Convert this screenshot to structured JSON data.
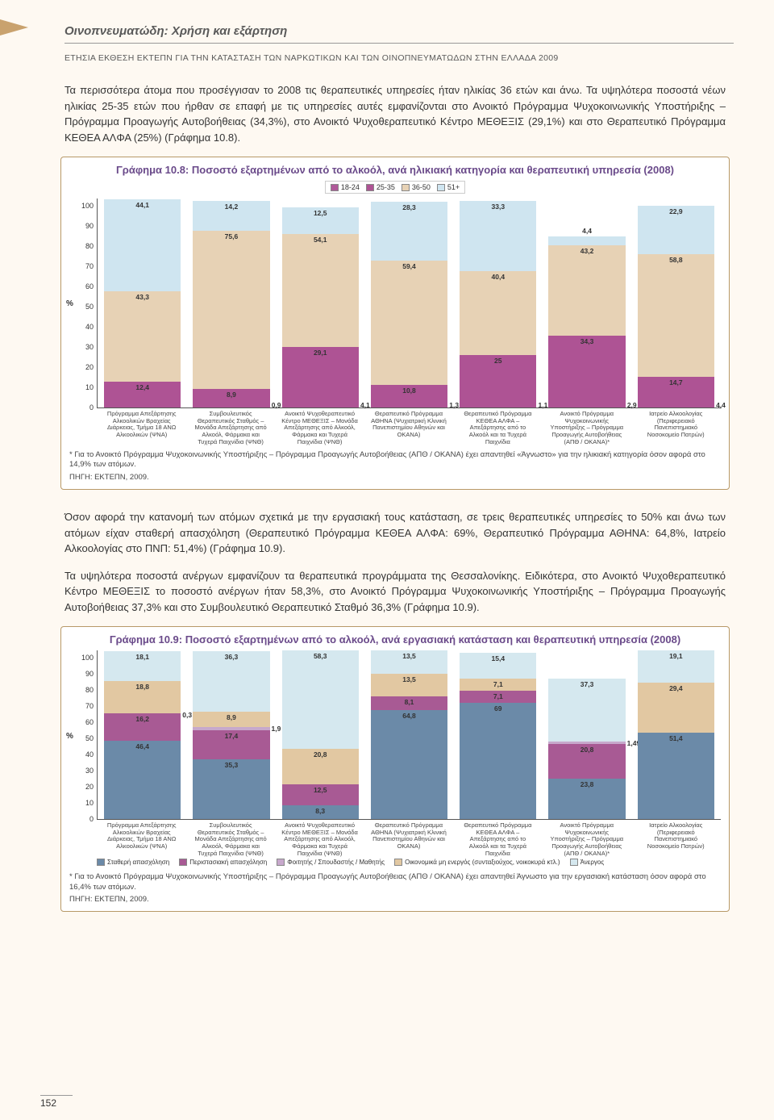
{
  "page": {
    "section_title": "Οινοπνευματώδη: Χρήση και εξάρτηση",
    "report_line": "ΕΤΗΣΙΑ ΕΚΘΕΣΗ ΕΚΤΕΠΝ ΓΙΑ ΤΗΝ ΚΑΤΑΣΤΑΣΗ ΤΩΝ ΝΑΡΚΩΤΙΚΩΝ ΚΑΙ ΤΩΝ ΟΙΝΟΠΝΕΥΜΑΤΩΔΩΝ ΣΤΗΝ ΕΛΛΑΔΑ 2009",
    "page_number": "152"
  },
  "para1": "Τα περισσότερα άτομα που προσέγγισαν το 2008 τις θεραπευτικές υπηρεσίες ήταν ηλικίας 36 ετών και άνω. Τα υψηλότερα ποσοστά νέων ηλικίας 25-35 ετών που ήρθαν σε επαφή με τις υπηρεσίες αυτές εμφανίζονται στο Ανοικτό Πρόγραμμα Ψυχοκοινωνικής Υποστήριξης – Πρόγραμμα Προαγωγής Αυτοβοήθειας (34,3%), στο Ανοικτό Ψυχοθεραπευτικό Κέντρο ΜΕΘΕΞΙΣ (29,1%) και στο Θεραπευτικό Πρόγραμμα ΚΕΘΕΑ ΑΛΦΑ (25%) (Γράφημα 10.8).",
  "para2": "Όσον αφορά την κατανομή των ατόμων σχετικά με την εργασιακή τους κατάσταση, σε τρεις θεραπευτικές υπηρεσίες το 50% και άνω των ατόμων είχαν σταθερή απασχόληση (Θεραπευτικό Πρόγραμμα ΚΕΘΕΑ ΑΛΦΑ: 69%, Θεραπευτικό Πρόγραμμα ΑΘΗΝΑ: 64,8%, Ιατρείο Αλκοολογίας στο ΠΝΠ: 51,4%) (Γράφημα 10.9).",
  "para3": "Τα υψηλότερα ποσοστά ανέργων εμφανίζουν τα θεραπευτικά προγράμματα της Θεσσαλονίκης. Ειδικότερα, στο Ανοικτό Ψυχοθεραπευτικό Κέντρο ΜΕΘΕΞΙΣ το ποσοστό ανέργων ήταν 58,3%, στο Ανοικτό Πρόγραμμα Ψυχοκοινωνικής Υποστήριξης – Πρόγραμμα Προαγωγής Αυτοβοήθειας 37,3% και στο Συμβουλευτικό Θεραπευτικό Σταθμό 36,3% (Γράφημα 10.9).",
  "chart108": {
    "title": "Γράφημα 10.8:  Ποσοστό εξαρτημένων από το αλκοόλ, ανά ηλικιακή κατηγορία και θεραπευτική υπηρεσία (2008)",
    "y_label": "%",
    "y_ticks": [
      "100",
      "90",
      "80",
      "70",
      "60",
      "50",
      "40",
      "30",
      "20",
      "10",
      "0"
    ],
    "legend": [
      {
        "label": "18-24",
        "color": "#b05a9a"
      },
      {
        "label": "25-35",
        "color": "#ae5394"
      },
      {
        "label": "36-50",
        "color": "#e7d2b5"
      },
      {
        "label": "51+",
        "color": "#cfe5f0"
      }
    ],
    "colors": {
      "s1": "#b05a9a",
      "s2": "#ae5394",
      "s3": "#e7d2b5",
      "s4": "#cfe5f0"
    },
    "categories": [
      "Πρόγραμμα Απεξάρτησης Αλκοολικών Βραχείας Διάρκειας, Τμήμα 18 ΑΝΩ Αλκοολικών (ΨΝΑ)",
      "Συμβουλευτικός Θεραπευτικός Σταθμός – Μονάδα Απεξάρτησης από Αλκοόλ, Φάρμακα και Τυχερά Παιχνίδια (ΨΝΘ)",
      "Ανοικτό Ψυχοθεραπευτικό Κέντρο ΜΕΘΕΞΙΣ – Μονάδα Απεξάρτησης από Αλκοόλ, Φάρμακα και Τυχερά Παιχνίδια (ΨΝΘ)",
      "Θεραπευτικό Πρόγραμμα ΑΘΗΝΑ (Ψυχιατρική Κλινική Πανεπιστημίου Αθηνών και ΟΚΑΝΑ)",
      "Θεραπευτικό Πρόγραμμα ΚΕΘΕΑ ΑΛΦΑ – Απεξάρτησης από το Αλκοόλ και τα Τυχερά Παιχνίδια",
      "Ανοικτό Πρόγραμμα Ψυχοκοινωνικής Υποστήριξης – Πρόγραμμα Προαγωγής Αυτοβοήθειας (ΑΠΘ / ΟΚΑΝΑ)*",
      "Ιατρείο Αλκοολογίας (Περιφερειακό Πανεπιστημιακό Νοσοκομείο Πατρών)"
    ],
    "bars": [
      {
        "segs": [
          {
            "v": 12.4,
            "t": "12,4"
          },
          {
            "v": 43.3,
            "t": "43,3"
          },
          {
            "v": 44.1,
            "t": "44,1"
          }
        ],
        "extra": null
      },
      {
        "segs": [
          {
            "v": 8.9,
            "t": "8,9"
          },
          {
            "v": 75.6,
            "t": "75,6"
          },
          {
            "v": 14.2,
            "t": "14,2"
          }
        ],
        "extra": "0,9"
      },
      {
        "segs": [
          {
            "v": 29.1,
            "t": "29,1"
          },
          {
            "v": 54.1,
            "t": "54,1"
          },
          {
            "v": 12.5,
            "t": "12,5"
          }
        ],
        "extra": "4,1"
      },
      {
        "segs": [
          {
            "v": 10.8,
            "t": "10,8"
          },
          {
            "v": 59.4,
            "t": "59,4"
          },
          {
            "v": 28.3,
            "t": "28,3"
          }
        ],
        "extra": "1,3"
      },
      {
        "segs": [
          {
            "v": 25,
            "t": "25"
          },
          {
            "v": 40.4,
            "t": "40,4"
          },
          {
            "v": 33.3,
            "t": "33,3"
          }
        ],
        "extra": "1,1"
      },
      {
        "segs": [
          {
            "v": 34.3,
            "t": "34,3"
          },
          {
            "v": 43.2,
            "t": "43,2"
          },
          {
            "v": 4.4,
            "t": "4,4"
          }
        ],
        "extra": "2,9"
      },
      {
        "segs": [
          {
            "v": 14.7,
            "t": "14,7"
          },
          {
            "v": 58.8,
            "t": "58,8"
          },
          {
            "v": 22.9,
            "t": "22,9"
          }
        ],
        "extra": "4,4"
      }
    ],
    "footnote": "* Για το Ανοικτό Πρόγραμμα Ψυχοκοινωνικής Υποστήριξης – Πρόγραμμα Προαγωγής Αυτοβοήθειας (ΑΠΘ / ΟΚΑΝΑ) έχει απαντηθεί «Άγνωστο» για την ηλικιακή κατηγορία όσον αφορά στο 14,9% των ατόμων.",
    "source": "ΠΗΓΗ: ΕΚΤΕΠΝ, 2009."
  },
  "chart109": {
    "title": "Γράφημα 10.9:  Ποσοστό εξαρτημένων από το αλκοόλ, ανά εργασιακή κατάσταση και θεραπευτική υπηρεσία (2008)",
    "y_label": "%",
    "y_ticks": [
      "100",
      "90",
      "80",
      "70",
      "60",
      "50",
      "40",
      "30",
      "20",
      "10",
      "0"
    ],
    "legend": [
      {
        "label": "Σταθερή απασχόληση",
        "color": "#6b8aa8"
      },
      {
        "label": "Περιστασιακή απασχόληση",
        "color": "#a85a94"
      },
      {
        "label": "Φοιτητής / Σπουδαστής / Μαθητής",
        "color": "#c7a8cc"
      },
      {
        "label": "Οικονομικά μη ενεργός (συνταξιούχος, νοικοκυρά κτλ.)",
        "color": "#e2c8a2"
      },
      {
        "label": "Άνεργος",
        "color": "#d5e8ef"
      }
    ],
    "colors": {
      "c1": "#6b8aa8",
      "c2": "#a85a94",
      "c3": "#c7a8cc",
      "c4": "#e2c8a2",
      "c5": "#d5e8ef"
    },
    "categories": [
      "Πρόγραμμα Απεξάρτησης Αλκοολικών Βραχείας Διάρκειας, Τμήμα 18 ΑΝΩ Αλκοολικών (ΨΝΑ)",
      "Συμβουλευτικός Θεραπευτικός Σταθμός – Μονάδα Απεξάρτησης από Αλκοόλ, Φάρμακα και Τυχερά Παιχνίδια (ΨΝΘ)",
      "Ανοικτό Ψυχοθεραπευτικό Κέντρο ΜΕΘΕΞΙΣ – Μονάδα Απεξάρτησης από Αλκοόλ, Φάρμακα και Τυχερά Παιχνίδια (ΨΝΘ)",
      "Θεραπευτικό Πρόγραμμα ΑΘΗΝΑ (Ψυχιατρική Κλινική Πανεπιστημίου Αθηνών και ΟΚΑΝΑ)",
      "Θεραπευτικό Πρόγραμμα ΚΕΘΕΑ ΑΛΦΑ – Απεξάρτησης από το Αλκοόλ και τα Τυχερά Παιχνίδια",
      "Ανοικτό Πρόγραμμα Ψυχοκοινωνικής Υποστήριξης – Πρόγραμμα Προαγωγής Αυτοβοήθειας (ΑΠΘ / ΟΚΑΝΑ)*",
      "Ιατρείο Αλκοολογίας (Περιφερειακό Πανεπιστημιακό Νοσοκομείο Πατρών)"
    ],
    "bars": [
      [
        {
          "c": "c1",
          "v": 46.4,
          "t": "46,4"
        },
        {
          "c": "c2",
          "v": 16.2,
          "t": "16,2"
        },
        {
          "c": "c3",
          "v": 0.3,
          "t": "0,3",
          "side": true
        },
        {
          "c": "c4",
          "v": 18.8,
          "t": "18,8"
        },
        {
          "c": "c5",
          "v": 18.1,
          "t": "18,1"
        }
      ],
      [
        {
          "c": "c1",
          "v": 35.3,
          "t": "35,3"
        },
        {
          "c": "c2",
          "v": 17.4,
          "t": "17,4"
        },
        {
          "c": "c3",
          "v": 1.9,
          "t": "1,9",
          "side": true
        },
        {
          "c": "c4",
          "v": 8.9,
          "t": "8,9"
        },
        {
          "c": "c5",
          "v": 36.3,
          "t": "36,3"
        }
      ],
      [
        {
          "c": "c1",
          "v": 8.3,
          "t": "8,3"
        },
        {
          "c": "c2",
          "v": 12.5,
          "t": "12,5"
        },
        {
          "c": "c4",
          "v": 20.8,
          "t": "20,8"
        },
        {
          "c": "c5",
          "v": 58.3,
          "t": "58,3"
        }
      ],
      [
        {
          "c": "c1",
          "v": 64.8,
          "t": "64,8"
        },
        {
          "c": "c2",
          "v": 8.1,
          "t": "8,1"
        },
        {
          "c": "c4",
          "v": 13.5,
          "t": "13,5"
        },
        {
          "c": "c5",
          "v": 13.5,
          "t": "13,5"
        }
      ],
      [
        {
          "c": "c1",
          "v": 69,
          "t": "69"
        },
        {
          "c": "c2",
          "v": 7.1,
          "t": "7,1"
        },
        {
          "c": "c4",
          "v": 7.1,
          "t": "7,1"
        },
        {
          "c": "c5",
          "v": 15.4,
          "t": "15,4"
        }
      ],
      [
        {
          "c": "c1",
          "v": 23.8,
          "t": "23,8"
        },
        {
          "c": "c2",
          "v": 20.8,
          "t": "20,8"
        },
        {
          "c": "c3",
          "v": 1.49,
          "t": "1,49",
          "side": true
        },
        {
          "c": "c5",
          "v": 37.3,
          "t": "37,3"
        }
      ],
      [
        {
          "c": "c1",
          "v": 51.4,
          "t": "51,4"
        },
        {
          "c": "c4",
          "v": 29.4,
          "t": "29,4"
        },
        {
          "c": "c5",
          "v": 19.1,
          "t": "19,1"
        }
      ]
    ],
    "footnote": "* Για το Ανοικτό Πρόγραμμα Ψυχοκοινωνικής Υποστήριξης – Πρόγραμμα Προαγωγής Αυτοβοήθειας (ΑΠΘ / ΟΚΑΝΑ) έχει απαντηθεί Άγνωστο για την εργασιακή κατάσταση όσον αφορά στο 16,4% των ατόμων.",
    "source": "ΠΗΓΗ: ΕΚΤΕΠΝ, 2009."
  }
}
